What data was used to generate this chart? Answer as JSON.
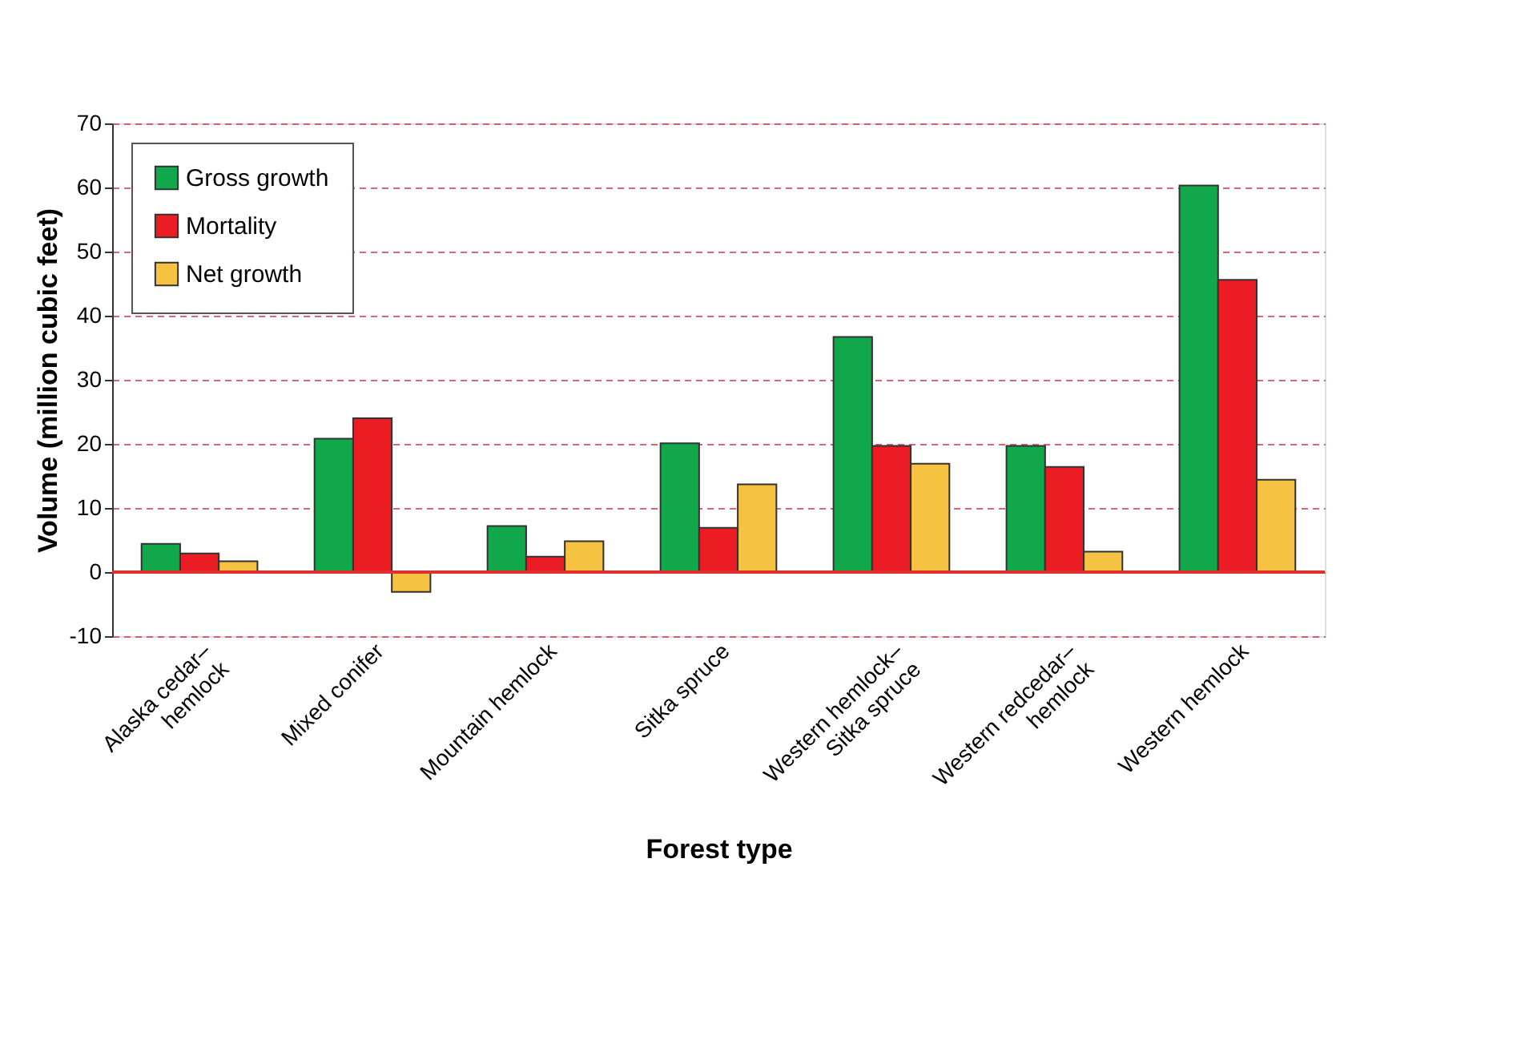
{
  "chart_data": {
    "type": "bar",
    "xlabel": "Forest type",
    "ylabel": "Volume (million cubic feet)",
    "categories": [
      "Alaska cedar–\nhemlock",
      "Mixed conifer",
      "Mountain hemlock",
      "Sitka spruce",
      "Western hemlock–\nSitka spruce",
      "Western redcedar–\nhemlock",
      "Western hemlock"
    ],
    "series": [
      {
        "name": "Gross growth",
        "color": "#10a84a",
        "values": [
          4.4,
          20.8,
          7.2,
          20.1,
          36.7,
          19.7,
          60.3
        ]
      },
      {
        "name": "Mortality",
        "color": "#ec1c24",
        "values": [
          2.9,
          24.0,
          2.4,
          6.9,
          19.7,
          16.4,
          45.6
        ]
      },
      {
        "name": "Net growth",
        "color": "#f5c242",
        "values": [
          1.7,
          -3.1,
          4.8,
          13.7,
          16.9,
          3.2,
          14.4
        ]
      }
    ],
    "ylim": [
      -10,
      70
    ],
    "yticks": [
      -10,
      0,
      10,
      20,
      30,
      40,
      50,
      60,
      70
    ],
    "grid": "y",
    "legend": "top left",
    "ref_lines": [
      {
        "axis": "y",
        "value": 0,
        "color": "#e03030"
      }
    ]
  }
}
